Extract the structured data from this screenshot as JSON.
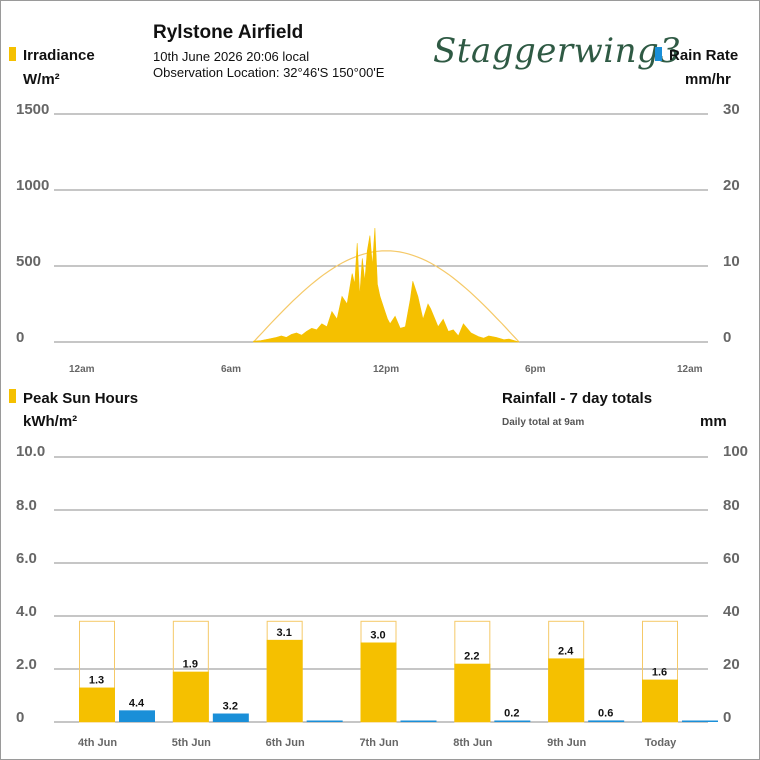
{
  "header": {
    "title": "Rylstone Airfield",
    "datetime": "10th June 2026  20:06 local",
    "location": "Observation Location: 32°46'S 150°00'E",
    "brand": "Staggerwing3"
  },
  "colors": {
    "irradiance": "#f5c000",
    "rain": "#1a8fd8",
    "clear_sky_curve": "#f5c968",
    "grid": "#8c8c8c",
    "tick_text": "#666666"
  },
  "chart_data": [
    {
      "type": "area",
      "legend_left": {
        "label": "Irradiance",
        "unit": "W/m²"
      },
      "legend_right": {
        "label": "Rain Rate",
        "unit": "mm/hr"
      },
      "y_left": {
        "range": [
          0,
          1500
        ],
        "ticks": [
          "0",
          "500",
          "1000",
          "1500"
        ]
      },
      "y_right": {
        "range": [
          0,
          30
        ],
        "ticks": [
          "0",
          "10",
          "20",
          "30"
        ]
      },
      "x_range_hours": [
        0,
        24
      ],
      "x_ticks": [
        {
          "hour": 0,
          "label": "12am"
        },
        {
          "hour": 6,
          "label": "6am"
        },
        {
          "hour": 12,
          "label": "12pm"
        },
        {
          "hour": 18,
          "label": "6pm"
        },
        {
          "hour": 24,
          "label": "12am"
        }
      ],
      "series": [
        {
          "name": "Irradiance",
          "unit": "W/m²",
          "x_hours": [
            6.9,
            7.2,
            7.5,
            7.8,
            8.0,
            8.2,
            8.4,
            8.6,
            8.8,
            9.0,
            9.2,
            9.4,
            9.6,
            9.8,
            10.0,
            10.2,
            10.4,
            10.6,
            10.8,
            10.9,
            11.0,
            11.1,
            11.2,
            11.3,
            11.4,
            11.5,
            11.6,
            11.7,
            11.8,
            11.9,
            12.0,
            12.1,
            12.2,
            12.3,
            12.5,
            12.7,
            12.9,
            13.1,
            13.2,
            13.4,
            13.6,
            13.8,
            13.9,
            14.0,
            14.2,
            14.4,
            14.6,
            14.8,
            15.0,
            15.2,
            15.5,
            15.8,
            16.0,
            16.2,
            16.5,
            16.8,
            17.0,
            17.2,
            17.4
          ],
          "values": [
            5,
            10,
            20,
            30,
            40,
            30,
            50,
            60,
            45,
            70,
            90,
            80,
            120,
            100,
            200,
            150,
            300,
            250,
            450,
            380,
            650,
            300,
            550,
            400,
            600,
            700,
            500,
            750,
            380,
            300,
            250,
            200,
            150,
            120,
            170,
            90,
            100,
            280,
            400,
            300,
            150,
            250,
            220,
            180,
            100,
            150,
            70,
            80,
            40,
            120,
            60,
            35,
            25,
            40,
            30,
            15,
            20,
            10,
            0
          ]
        },
        {
          "name": "Rain Rate",
          "unit": "mm/hr",
          "x_hours": [],
          "values": []
        }
      ]
    },
    {
      "type": "bar",
      "legend_left": {
        "label": "Peak Sun Hours",
        "unit": "kWh/m²"
      },
      "legend_right": {
        "label": "Rainfall - 7 day totals",
        "sublabel": "Daily total at 9am",
        "unit": "mm"
      },
      "y_left": {
        "range": [
          0,
          10
        ],
        "ticks": [
          "0",
          "2.0",
          "4.0",
          "6.0",
          "8.0",
          "10.0"
        ]
      },
      "y_right": {
        "range": [
          0,
          100
        ],
        "ticks": [
          "0",
          "20",
          "40",
          "60",
          "80",
          "100"
        ]
      },
      "categories": [
        "4th Jun",
        "5th Jun",
        "6th Jun",
        "7th Jun",
        "8th Jun",
        "9th Jun",
        "Today"
      ],
      "series": [
        {
          "name": "Peak Sun Hours",
          "values": [
            1.3,
            1.9,
            3.1,
            3.0,
            2.2,
            2.4,
            1.6
          ],
          "labels": [
            "1.3",
            "1.9",
            "3.1",
            "3.0",
            "2.2",
            "2.4",
            "1.6"
          ]
        },
        {
          "name": "Rainfall",
          "values": [
            4.4,
            3.2,
            0,
            0,
            0.2,
            0.6,
            0
          ],
          "labels": [
            "4.4",
            "3.2",
            "",
            "",
            "0.2",
            "0.6",
            ""
          ]
        }
      ]
    }
  ]
}
